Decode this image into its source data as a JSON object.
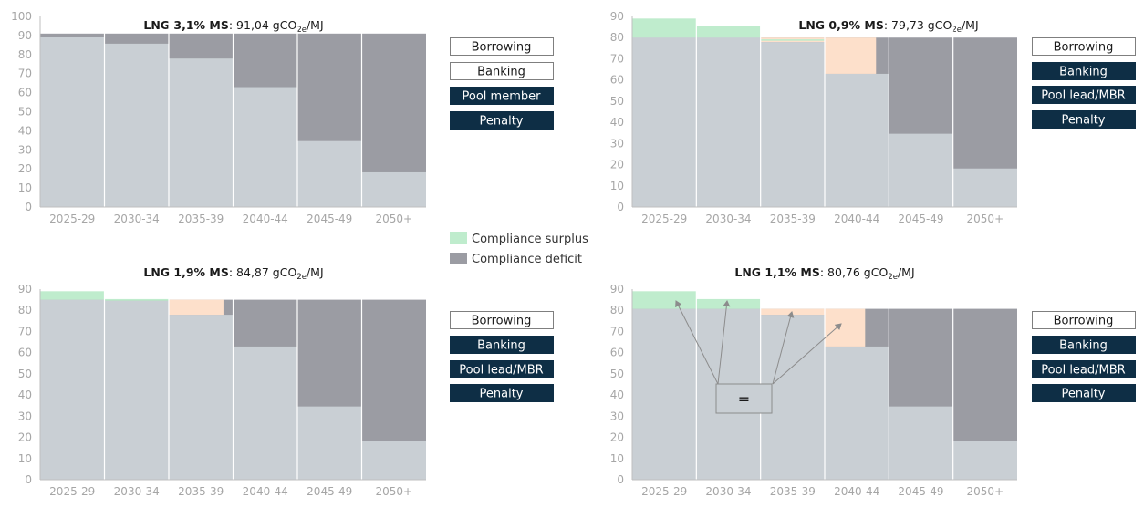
{
  "colors": {
    "base": "#c9cfd4",
    "deficit": "#9b9ca3",
    "surplus": "#bfeccd",
    "peach": "#fde0cb",
    "navy": "#0e2e45",
    "white": "#ffffff",
    "axis": "#bfbfbf",
    "tick": "#a6a6a6",
    "annotation": "#8c8c8c"
  },
  "legend": {
    "surplus_label": "Compliance surplus",
    "deficit_label": "Compliance deficit"
  },
  "equal_sign": "=",
  "chart_data": [
    {
      "id": "lng31",
      "type": "bar",
      "title_bold": "LNG 3,1% MS",
      "title_value": ": 91,04 gCO",
      "title_sub": "2e",
      "title_unit": "/MJ",
      "ylim": [
        0,
        100
      ],
      "yticks": [
        "0",
        "10",
        "20",
        "30",
        "40",
        "50",
        "60",
        "70",
        "80",
        "90",
        "100"
      ],
      "categories": [
        "2025-29",
        "2030-34",
        "2035-39",
        "2040-44",
        "2045-49",
        "2050+"
      ],
      "target": 91,
      "actual": [
        89,
        85.7,
        77.9,
        62.9,
        34.6,
        18.2
      ],
      "segments": [],
      "buttons": [
        {
          "label": "Borrowing",
          "style": "outline"
        },
        {
          "label": "Banking",
          "style": "outline"
        },
        {
          "label": "Pool member",
          "style": "filled"
        },
        {
          "label": "Penalty",
          "style": "filled"
        }
      ]
    },
    {
      "id": "lng09",
      "type": "bar",
      "title_bold": "LNG 0,9% MS",
      "title_value": ": 79,73 gCO",
      "title_sub": "2e",
      "title_unit": "/MJ",
      "ylim": [
        0,
        90
      ],
      "yticks": [
        "0",
        "10",
        "20",
        "30",
        "40",
        "50",
        "60",
        "70",
        "80",
        "90"
      ],
      "categories": [
        "2025-29",
        "2030-34",
        "2035-39",
        "2040-44",
        "2045-49",
        "2050+"
      ],
      "target": 80,
      "actual": [
        80,
        80,
        77.9,
        62.9,
        34.6,
        18.2
      ],
      "segments": [
        {
          "cat": 0,
          "from": 80,
          "to": 89,
          "color": "surplus"
        },
        {
          "cat": 1,
          "from": 80,
          "to": 85.3,
          "color": "surplus"
        },
        {
          "cat": 2,
          "from": 77.9,
          "to": 80,
          "color": "peach"
        },
        {
          "cat": 2,
          "from": 78.5,
          "to": 79.2,
          "color": "surplus"
        },
        {
          "cat": 3,
          "from": 62.9,
          "to": 80,
          "color": "peach",
          "frac": 0.8
        }
      ],
      "buttons": [
        {
          "label": "Borrowing",
          "style": "outline"
        },
        {
          "label": "Banking",
          "style": "filled"
        },
        {
          "label": "Pool lead/MBR",
          "style": "filled"
        },
        {
          "label": "Penalty",
          "style": "filled"
        }
      ]
    },
    {
      "id": "lng19",
      "type": "bar",
      "title_bold": "LNG 1,9% MS",
      "title_value": ": 84,87 gCO",
      "title_sub": "2e",
      "title_unit": "/MJ",
      "ylim": [
        0,
        90
      ],
      "yticks": [
        "0",
        "10",
        "20",
        "30",
        "40",
        "50",
        "60",
        "70",
        "80",
        "90"
      ],
      "categories": [
        "2025-29",
        "2030-34",
        "2035-39",
        "2040-44",
        "2045-49",
        "2050+"
      ],
      "target": 85,
      "actual": [
        85,
        84.5,
        77.9,
        62.9,
        34.6,
        18.2
      ],
      "segments": [
        {
          "cat": 0,
          "from": 85,
          "to": 89,
          "color": "surplus"
        },
        {
          "cat": 1,
          "from": 84.5,
          "to": 85.3,
          "color": "surplus"
        },
        {
          "cat": 2,
          "from": 77.9,
          "to": 85,
          "color": "peach",
          "frac": 0.85
        }
      ],
      "buttons": [
        {
          "label": "Borrowing",
          "style": "outline"
        },
        {
          "label": "Banking",
          "style": "filled"
        },
        {
          "label": "Pool lead/MBR",
          "style": "filled"
        },
        {
          "label": "Penalty",
          "style": "filled"
        }
      ]
    },
    {
      "id": "lng11",
      "type": "bar",
      "title_bold": "LNG 1,1% MS",
      "title_value": ": 80,76 gCO",
      "title_sub": "2e",
      "title_unit": "/MJ",
      "ylim": [
        0,
        90
      ],
      "yticks": [
        "0",
        "10",
        "20",
        "30",
        "40",
        "50",
        "60",
        "70",
        "80",
        "90"
      ],
      "categories": [
        "2025-29",
        "2030-34",
        "2035-39",
        "2040-44",
        "2045-49",
        "2050+"
      ],
      "target": 80.7,
      "actual": [
        80.7,
        80.7,
        77.9,
        62.9,
        34.6,
        18.2
      ],
      "segments": [
        {
          "cat": 0,
          "from": 80.7,
          "to": 89,
          "color": "surplus"
        },
        {
          "cat": 1,
          "from": 80.7,
          "to": 85.3,
          "color": "surplus"
        },
        {
          "cat": 2,
          "from": 77.9,
          "to": 80.7,
          "color": "peach"
        },
        {
          "cat": 3,
          "from": 62.9,
          "to": 80.7,
          "color": "peach",
          "frac": 0.63
        }
      ],
      "buttons": [
        {
          "label": "Borrowing",
          "style": "outline"
        },
        {
          "label": "Banking",
          "style": "filled"
        },
        {
          "label": "Pool lead/MBR",
          "style": "filled"
        },
        {
          "label": "Penalty",
          "style": "filled"
        }
      ],
      "annotation": true
    }
  ]
}
